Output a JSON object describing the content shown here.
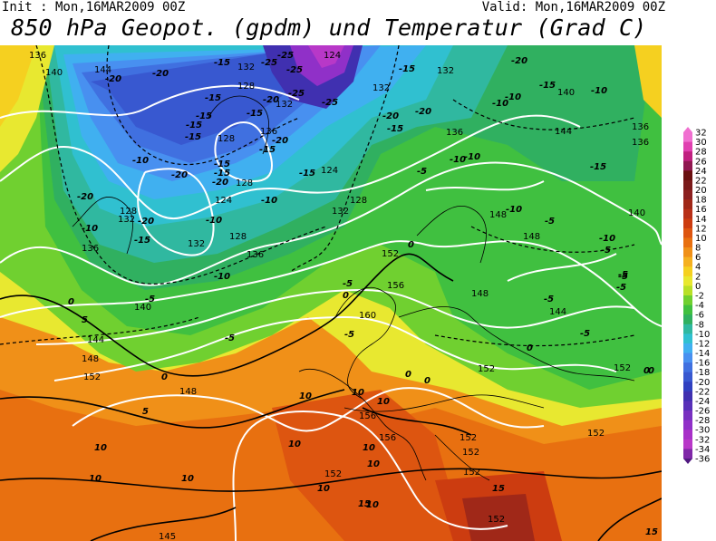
{
  "header": {
    "init_text": "Init : Mon,16MAR2009 00Z",
    "valid_text": "Valid: Mon,16MAR2009 00Z",
    "title": "850 hPa Geopot. (gpdm) und Temperatur (Grad C)"
  },
  "colorbar": {
    "levels": [
      "32",
      "30",
      "28",
      "26",
      "24",
      "22",
      "20",
      "18",
      "16",
      "14",
      "12",
      "10",
      "8",
      "6",
      "4",
      "2",
      "0",
      "-2",
      "-4",
      "-6",
      "-8",
      "-10",
      "-12",
      "-14",
      "-16",
      "-18",
      "-20",
      "-22",
      "-24",
      "-26",
      "-28",
      "-30",
      "-32",
      "-34",
      "-36"
    ],
    "colors": [
      "#f070d0",
      "#e040b0",
      "#c02080",
      "#901850",
      "#6a1010",
      "#7a1a1a",
      "#8c2020",
      "#a02818",
      "#b83018",
      "#cc3c10",
      "#dd5510",
      "#e87010",
      "#f09018",
      "#f5b020",
      "#f5d020",
      "#e8e830",
      "#b8e028",
      "#70d030",
      "#40c040",
      "#30b060",
      "#30b8a0",
      "#30c0d0",
      "#40b0f0",
      "#4890f0",
      "#4070e0",
      "#3858d0",
      "#3040c0",
      "#4030b0",
      "#5830b8",
      "#7830c0",
      "#9030c8",
      "#a830c8",
      "#b838c8",
      "#8028a8",
      "#501880"
    ]
  },
  "geopotential_labels": [
    "136",
    "140",
    "144",
    "124",
    "132",
    "132",
    "140",
    "128",
    "132",
    "136",
    "132",
    "144",
    "136",
    "128",
    "136",
    "124",
    "128",
    "124",
    "128",
    "132",
    "136",
    "128",
    "148",
    "140",
    "148",
    "136",
    "132",
    "128",
    "132",
    "136",
    "140",
    "156",
    "152",
    "160",
    "148",
    "144",
    "148",
    "152",
    "152",
    "144",
    "156",
    "148",
    "152",
    "156",
    "152",
    "152",
    "152",
    "152",
    "152",
    "152",
    "145"
  ],
  "temperature_labels": [
    "-20",
    "-25",
    "-15",
    "-25",
    "-25",
    "-15",
    "-20",
    "-20",
    "-15",
    "-20",
    "-15",
    "-10",
    "-10",
    "-25",
    "-15",
    "-20",
    "-15",
    "-15",
    "-25",
    "-10",
    "-20",
    "-15",
    "-20",
    "-15",
    "-15",
    "-20",
    "-10",
    "-15",
    "-10",
    "-15",
    "-20",
    "-20",
    "-15",
    "-5",
    "-10",
    "-20",
    "-10",
    "-15",
    "-10",
    "-10",
    "-10",
    "-15",
    "-5",
    "-10",
    "-5",
    "-5",
    "-5",
    "0",
    "-5",
    "0",
    "-10",
    "0",
    "-5",
    "0",
    "0",
    "-5",
    "-5",
    "-5",
    "0",
    "0",
    "5",
    "5",
    "10",
    "10",
    "10",
    "10",
    "10",
    "10",
    "10",
    "10",
    "10",
    "10",
    "10",
    "15",
    "15",
    "15",
    "-5",
    "-5",
    "0",
    "0"
  ]
}
